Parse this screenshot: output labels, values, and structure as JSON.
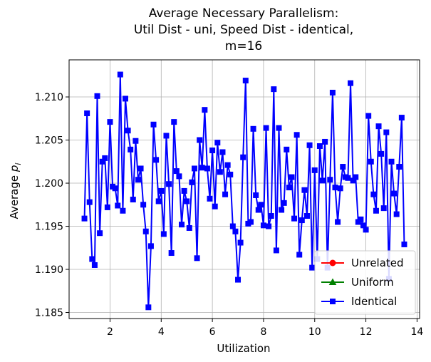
{
  "chart_data": {
    "type": "line",
    "title_lines": [
      "Average Necessary Parallelism:",
      "Util Dist - uni, Speed Dist - identical,",
      "m=16"
    ],
    "xlabel": "Utilization",
    "ylabel_main": "Average ",
    "ylabel_symbol": "p",
    "ylabel_subscript": "i",
    "xlim": [
      0.4,
      14.1
    ],
    "ylim": [
      1.1843,
      1.2143
    ],
    "xticks": [
      2,
      4,
      6,
      8,
      10,
      12,
      14
    ],
    "xtick_labels": [
      "2",
      "4",
      "6",
      "8",
      "10",
      "12",
      "14"
    ],
    "yticks": [
      1.185,
      1.19,
      1.195,
      1.2,
      1.205,
      1.21
    ],
    "ytick_labels": [
      "1.185",
      "1.190",
      "1.195",
      "1.200",
      "1.205",
      "1.210"
    ],
    "grid": true,
    "legend_placement": "lower-right",
    "series": [
      {
        "name": "Unrelated",
        "color": "#ff0000",
        "marker": "circle",
        "x": [],
        "y": []
      },
      {
        "name": "Uniform",
        "color": "#008000",
        "marker": "triangle",
        "x": [],
        "y": []
      },
      {
        "name": "Identical",
        "color": "#0000ff",
        "marker": "square",
        "x": [
          1.0,
          1.1,
          1.2,
          1.3,
          1.4,
          1.5,
          1.6,
          1.7,
          1.8,
          1.9,
          2.0,
          2.1,
          2.2,
          2.3,
          2.4,
          2.5,
          2.6,
          2.7,
          2.8,
          2.9,
          3.0,
          3.1,
          3.2,
          3.3,
          3.4,
          3.5,
          3.6,
          3.7,
          3.8,
          3.9,
          4.0,
          4.1,
          4.2,
          4.3,
          4.4,
          4.5,
          4.6,
          4.7,
          4.8,
          4.9,
          5.0,
          5.1,
          5.2,
          5.3,
          5.4,
          5.5,
          5.6,
          5.7,
          5.8,
          5.9,
          6.0,
          6.1,
          6.2,
          6.3,
          6.4,
          6.5,
          6.6,
          6.7,
          6.8,
          6.9,
          7.0,
          7.1,
          7.2,
          7.3,
          7.4,
          7.5,
          7.6,
          7.7,
          7.8,
          7.9,
          8.0,
          8.1,
          8.2,
          8.3,
          8.4,
          8.5,
          8.6,
          8.7,
          8.8,
          8.9,
          9.0,
          9.1,
          9.2,
          9.3,
          9.4,
          9.5,
          9.6,
          9.7,
          9.8,
          9.9,
          10.0,
          10.1,
          10.2,
          10.3,
          10.4,
          10.5,
          10.6,
          10.7,
          10.8,
          10.9,
          11.0,
          11.1,
          11.2,
          11.3,
          11.4,
          11.5,
          11.6,
          11.7,
          11.8,
          11.9,
          12.0,
          12.1,
          12.2,
          12.3,
          12.4,
          12.5,
          12.6,
          12.7,
          12.8,
          12.9,
          13.0,
          13.1,
          13.2,
          13.3,
          13.4,
          13.5
        ],
        "y": [
          1.1959,
          1.2081,
          1.1978,
          1.1912,
          1.1905,
          1.2101,
          1.1942,
          1.2025,
          1.2029,
          1.1972,
          1.2071,
          1.1996,
          1.1994,
          1.1974,
          1.2126,
          1.1968,
          1.2098,
          1.2061,
          1.2039,
          1.1981,
          1.2049,
          1.2004,
          1.2017,
          1.1975,
          1.1944,
          1.1856,
          1.1927,
          1.2068,
          1.2027,
          1.1979,
          1.1991,
          1.1941,
          1.2055,
          1.1999,
          1.1919,
          1.2071,
          1.2014,
          1.2008,
          1.1952,
          1.1991,
          1.1979,
          1.1948,
          1.2001,
          1.2017,
          1.1913,
          1.205,
          1.2018,
          1.2085,
          1.2017,
          1.1982,
          1.2038,
          1.1973,
          1.2047,
          1.2013,
          1.2036,
          1.1987,
          1.2021,
          1.201,
          1.195,
          1.1944,
          1.1888,
          1.1931,
          1.203,
          1.2119,
          1.1953,
          1.1955,
          1.2063,
          1.1986,
          1.1969,
          1.1975,
          1.1951,
          1.2064,
          1.195,
          1.1962,
          1.2109,
          1.1922,
          1.2064,
          1.1969,
          1.1977,
          1.2039,
          1.1995,
          1.2007,
          1.1959,
          1.2056,
          1.1917,
          1.1957,
          1.1992,
          1.1962,
          1.2044,
          1.1902,
          1.2015,
          1.1912,
          1.2043,
          1.2003,
          1.2048,
          1.1902,
          1.2004,
          1.2105,
          1.1995,
          1.1955,
          1.1994,
          1.2019,
          1.2007,
          1.2006,
          1.2116,
          1.2003,
          1.2007,
          1.1955,
          1.1958,
          1.1951,
          1.1946,
          1.2078,
          1.2025,
          1.1987,
          1.1968,
          1.2066,
          1.2034,
          1.1971,
          1.2059,
          1.1889,
          1.2025,
          1.1988,
          1.1964,
          1.2019,
          1.2076,
          1.1929
        ]
      }
    ]
  }
}
